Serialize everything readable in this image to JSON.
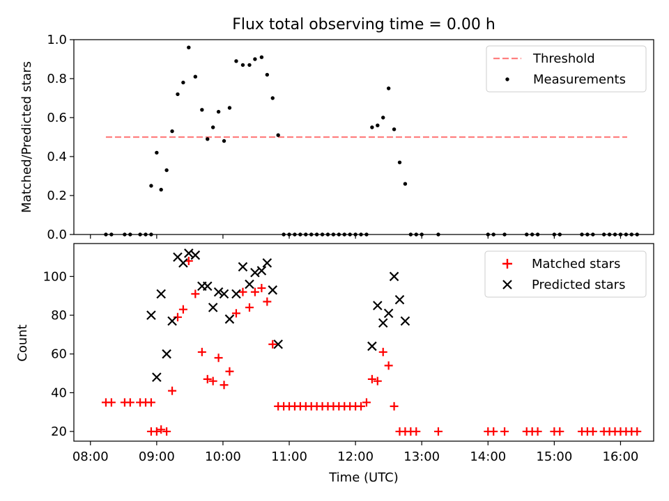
{
  "title": "Flux total observing time = 0.00 h",
  "chart_data": [
    {
      "type": "scatter",
      "ylabel": "Matched/Predicted stars",
      "ylim": [
        0,
        1.0
      ],
      "yticks": [
        "0.0",
        "0.2",
        "0.4",
        "0.6",
        "0.8",
        "1.0"
      ],
      "ytick_values": [
        0,
        0.2,
        0.4,
        0.6,
        0.8,
        1.0
      ],
      "legend": {
        "position": "top-right",
        "entries": [
          "Threshold",
          "Measurements"
        ]
      },
      "threshold": {
        "name": "Threshold",
        "value": 0.5,
        "x_start": "08:14",
        "x_end": "16:06",
        "color": "#ff7f7f",
        "style": "dashed"
      },
      "measurements": {
        "name": "Measurements",
        "color": "#000000",
        "points": [
          [
            "08:14",
            0
          ],
          [
            "08:19",
            0
          ],
          [
            "08:31",
            0
          ],
          [
            "08:36",
            0
          ],
          [
            "08:45",
            0
          ],
          [
            "08:50",
            0
          ],
          [
            "08:55",
            0
          ],
          [
            "08:55",
            0.25
          ],
          [
            "09:00",
            0.42
          ],
          [
            "09:04",
            0.23
          ],
          [
            "09:09",
            0.33
          ],
          [
            "09:14",
            0.53
          ],
          [
            "09:19",
            0.72
          ],
          [
            "09:24",
            0.78
          ],
          [
            "09:29",
            0.96
          ],
          [
            "09:35",
            0.81
          ],
          [
            "09:41",
            0.64
          ],
          [
            "09:46",
            0.49
          ],
          [
            "09:51",
            0.55
          ],
          [
            "09:56",
            0.63
          ],
          [
            "10:01",
            0.48
          ],
          [
            "10:06",
            0.65
          ],
          [
            "10:12",
            0.89
          ],
          [
            "10:18",
            0.87
          ],
          [
            "10:24",
            0.87
          ],
          [
            "10:29",
            0.9
          ],
          [
            "10:35",
            0.91
          ],
          [
            "10:40",
            0.82
          ],
          [
            "10:45",
            0.7
          ],
          [
            "10:50",
            0.51
          ],
          [
            "10:55",
            0
          ],
          [
            "11:00",
            0
          ],
          [
            "11:05",
            0
          ],
          [
            "11:10",
            0
          ],
          [
            "11:15",
            0
          ],
          [
            "11:20",
            0
          ],
          [
            "11:25",
            0
          ],
          [
            "11:30",
            0
          ],
          [
            "11:35",
            0
          ],
          [
            "11:40",
            0
          ],
          [
            "11:45",
            0
          ],
          [
            "11:50",
            0
          ],
          [
            "11:55",
            0
          ],
          [
            "12:00",
            0
          ],
          [
            "12:05",
            0
          ],
          [
            "12:10",
            0
          ],
          [
            "12:15",
            0.55
          ],
          [
            "12:20",
            0.56
          ],
          [
            "12:25",
            0.6
          ],
          [
            "12:30",
            0.75
          ],
          [
            "12:35",
            0.54
          ],
          [
            "12:40",
            0.37
          ],
          [
            "12:45",
            0.26
          ],
          [
            "12:50",
            0
          ],
          [
            "12:55",
            0
          ],
          [
            "13:00",
            0
          ],
          [
            "13:15",
            0
          ],
          [
            "14:00",
            0
          ],
          [
            "14:05",
            0
          ],
          [
            "14:15",
            0
          ],
          [
            "14:35",
            0
          ],
          [
            "14:40",
            0
          ],
          [
            "14:45",
            0
          ],
          [
            "15:00",
            0
          ],
          [
            "15:05",
            0
          ],
          [
            "15:25",
            0
          ],
          [
            "15:30",
            0
          ],
          [
            "15:35",
            0
          ],
          [
            "15:45",
            0
          ],
          [
            "15:50",
            0
          ],
          [
            "15:55",
            0
          ],
          [
            "16:00",
            0
          ],
          [
            "16:05",
            0
          ],
          [
            "16:10",
            0
          ],
          [
            "16:15",
            0
          ]
        ]
      }
    },
    {
      "type": "scatter",
      "xlabel": "Time (UTC)",
      "ylabel": "Count",
      "ylim": [
        15,
        117
      ],
      "yticks": [
        "20",
        "40",
        "60",
        "80",
        "100"
      ],
      "ytick_values": [
        20,
        40,
        60,
        80,
        100
      ],
      "xticks": [
        "08:00",
        "09:00",
        "10:00",
        "11:00",
        "12:00",
        "13:00",
        "14:00",
        "15:00",
        "16:00"
      ],
      "legend": {
        "position": "top-right",
        "entries": [
          "Matched stars",
          "Predicted stars"
        ]
      },
      "series": [
        {
          "name": "Matched stars",
          "marker": "plus",
          "color": "#ff0000",
          "points": [
            [
              "08:14",
              35
            ],
            [
              "08:19",
              35
            ],
            [
              "08:31",
              35
            ],
            [
              "08:36",
              35
            ],
            [
              "08:45",
              35
            ],
            [
              "08:50",
              35
            ],
            [
              "08:55",
              35
            ],
            [
              "08:55",
              20
            ],
            [
              "09:00",
              20
            ],
            [
              "09:04",
              21
            ],
            [
              "09:09",
              20
            ],
            [
              "09:14",
              41
            ],
            [
              "09:19",
              79
            ],
            [
              "09:24",
              83
            ],
            [
              "09:29",
              108
            ],
            [
              "09:35",
              91
            ],
            [
              "09:41",
              61
            ],
            [
              "09:46",
              47
            ],
            [
              "09:51",
              46
            ],
            [
              "09:56",
              58
            ],
            [
              "10:01",
              44
            ],
            [
              "10:06",
              51
            ],
            [
              "10:12",
              81
            ],
            [
              "10:18",
              92
            ],
            [
              "10:24",
              84
            ],
            [
              "10:29",
              92
            ],
            [
              "10:35",
              94
            ],
            [
              "10:40",
              87
            ],
            [
              "10:45",
              65
            ],
            [
              "10:50",
              33
            ],
            [
              "10:55",
              33
            ],
            [
              "11:00",
              33
            ],
            [
              "11:05",
              33
            ],
            [
              "11:10",
              33
            ],
            [
              "11:15",
              33
            ],
            [
              "11:20",
              33
            ],
            [
              "11:25",
              33
            ],
            [
              "11:30",
              33
            ],
            [
              "11:35",
              33
            ],
            [
              "11:40",
              33
            ],
            [
              "11:45",
              33
            ],
            [
              "11:50",
              33
            ],
            [
              "11:55",
              33
            ],
            [
              "12:00",
              33
            ],
            [
              "12:05",
              33
            ],
            [
              "12:10",
              35
            ],
            [
              "12:15",
              47
            ],
            [
              "12:20",
              46
            ],
            [
              "12:25",
              61
            ],
            [
              "12:30",
              54
            ],
            [
              "12:35",
              33
            ],
            [
              "12:40",
              20
            ],
            [
              "12:45",
              20
            ],
            [
              "12:50",
              20
            ],
            [
              "12:55",
              20
            ],
            [
              "13:15",
              20
            ],
            [
              "14:00",
              20
            ],
            [
              "14:05",
              20
            ],
            [
              "14:15",
              20
            ],
            [
              "14:35",
              20
            ],
            [
              "14:40",
              20
            ],
            [
              "14:45",
              20
            ],
            [
              "15:00",
              20
            ],
            [
              "15:05",
              20
            ],
            [
              "15:25",
              20
            ],
            [
              "15:30",
              20
            ],
            [
              "15:35",
              20
            ],
            [
              "15:45",
              20
            ],
            [
              "15:50",
              20
            ],
            [
              "15:55",
              20
            ],
            [
              "16:00",
              20
            ],
            [
              "16:05",
              20
            ],
            [
              "16:10",
              20
            ],
            [
              "16:15",
              20
            ]
          ]
        },
        {
          "name": "Predicted stars",
          "marker": "x",
          "color": "#000000",
          "points": [
            [
              "08:55",
              80
            ],
            [
              "09:00",
              48
            ],
            [
              "09:04",
              91
            ],
            [
              "09:09",
              60
            ],
            [
              "09:14",
              77
            ],
            [
              "09:19",
              110
            ],
            [
              "09:24",
              107
            ],
            [
              "09:29",
              112
            ],
            [
              "09:35",
              111
            ],
            [
              "09:41",
              95
            ],
            [
              "09:46",
              95
            ],
            [
              "09:51",
              84
            ],
            [
              "09:56",
              92
            ],
            [
              "10:01",
              91
            ],
            [
              "10:06",
              78
            ],
            [
              "10:12",
              91
            ],
            [
              "10:18",
              105
            ],
            [
              "10:24",
              96
            ],
            [
              "10:29",
              102
            ],
            [
              "10:35",
              103
            ],
            [
              "10:40",
              107
            ],
            [
              "10:45",
              93
            ],
            [
              "10:50",
              65
            ],
            [
              "12:15",
              64
            ],
            [
              "12:20",
              85
            ],
            [
              "12:25",
              76
            ],
            [
              "12:30",
              81
            ],
            [
              "12:35",
              100
            ],
            [
              "12:40",
              88
            ],
            [
              "12:45",
              77
            ]
          ]
        }
      ]
    }
  ]
}
